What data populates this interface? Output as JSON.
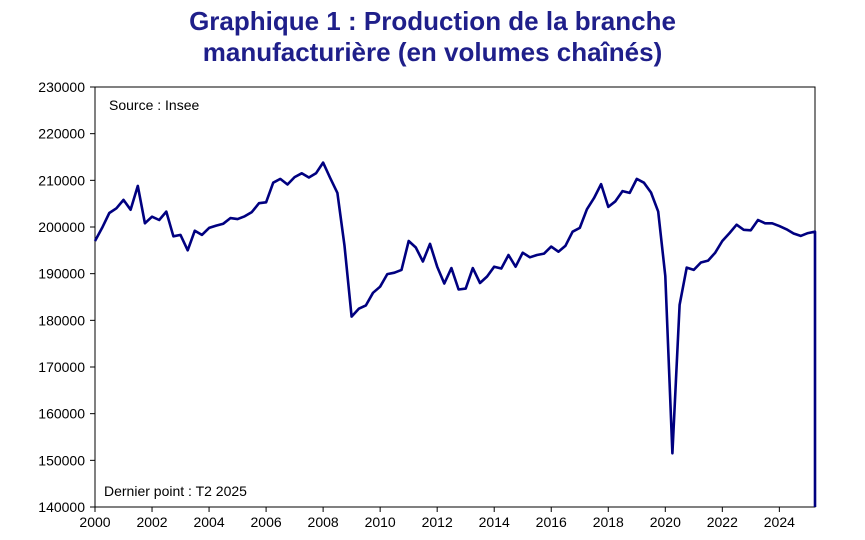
{
  "chart_data": {
    "type": "line",
    "title_line1": "Graphique 1 : Production de la branche",
    "title_line2": "manufacturière (en volumes chaînés)",
    "source_note": "Source : Insee",
    "last_point_note": "Dernier point : T2 2025",
    "xlim": [
      2000,
      2025.25
    ],
    "ylim": [
      140000,
      230000
    ],
    "x_ticks": [
      2000,
      2002,
      2004,
      2006,
      2008,
      2010,
      2012,
      2014,
      2016,
      2018,
      2020,
      2022,
      2024
    ],
    "x_tick_labels": [
      "2000",
      "2002",
      "2004",
      "2006",
      "2008",
      "2010",
      "2012",
      "2014",
      "2016",
      "2018",
      "2020",
      "2022",
      "2024"
    ],
    "y_ticks": [
      140000,
      150000,
      160000,
      170000,
      180000,
      190000,
      200000,
      210000,
      220000,
      230000
    ],
    "y_tick_labels": [
      "140000",
      "150000",
      "160000",
      "170000",
      "180000",
      "190000",
      "200000",
      "210000",
      "220000",
      "230000"
    ],
    "grid": false,
    "line_color": "#000080",
    "series": [
      {
        "x": [
          2000.0,
          2000.25,
          2000.5,
          2000.75,
          2001.0,
          2001.25,
          2001.5,
          2001.75,
          2002.0,
          2002.25,
          2002.5,
          2002.75,
          2003.0,
          2003.25,
          2003.5,
          2003.75,
          2004.0,
          2004.25,
          2004.5,
          2004.75,
          2005.0,
          2005.25,
          2005.5,
          2005.75,
          2006.0,
          2006.25,
          2006.5,
          2006.75,
          2007.0,
          2007.25,
          2007.5,
          2007.75,
          2008.0,
          2008.25,
          2008.5,
          2008.75,
          2009.0,
          2009.25,
          2009.5,
          2009.75,
          2010.0,
          2010.25,
          2010.5,
          2010.75,
          2011.0,
          2011.25,
          2011.5,
          2011.75,
          2012.0,
          2012.25,
          2012.5,
          2012.75,
          2013.0,
          2013.25,
          2013.5,
          2013.75,
          2014.0,
          2014.25,
          2014.5,
          2014.75,
          2015.0,
          2015.25,
          2015.5,
          2015.75,
          2016.0,
          2016.25,
          2016.5,
          2016.75,
          2017.0,
          2017.25,
          2017.5,
          2017.75,
          2018.0,
          2018.25,
          2018.5,
          2018.75,
          2019.0,
          2019.25,
          2019.5,
          2019.75,
          2020.0,
          2020.25,
          2020.5,
          2020.75,
          2021.0,
          2021.25,
          2021.5,
          2021.75,
          2022.0,
          2022.25,
          2022.5,
          2022.75,
          2023.0,
          2023.25,
          2023.5,
          2023.75,
          2024.0,
          2024.25,
          2024.5,
          2024.75,
          2025.0,
          2025.25
        ],
        "values": [
          197000,
          199800,
          203000,
          204000,
          205800,
          203700,
          208800,
          200800,
          202200,
          201500,
          203300,
          198000,
          198300,
          195000,
          199200,
          198300,
          199800,
          200300,
          200700,
          201900,
          201700,
          202300,
          203200,
          205100,
          205300,
          209500,
          210300,
          209100,
          210700,
          211500,
          210600,
          211500,
          213800,
          210500,
          207300,
          196000,
          180800,
          182500,
          183200,
          185900,
          187200,
          189900,
          190200,
          190800,
          197000,
          195600,
          192600,
          196400,
          191500,
          187900,
          191200,
          186600,
          186800,
          191200,
          188000,
          189400,
          191500,
          191100,
          194000,
          191500,
          194500,
          193500,
          194000,
          194300,
          195800,
          194700,
          196000,
          199000,
          199800,
          203800,
          206200,
          209200,
          204300,
          205500,
          207700,
          207300,
          210300,
          209500,
          207400,
          203300,
          189500,
          151500,
          183300,
          191300,
          190800,
          192400,
          192800,
          194500,
          197000,
          198700,
          200500,
          199400,
          199300,
          201500,
          200800,
          200800,
          200200,
          199500,
          198600,
          198100,
          198700,
          199000
        ]
      }
    ]
  }
}
